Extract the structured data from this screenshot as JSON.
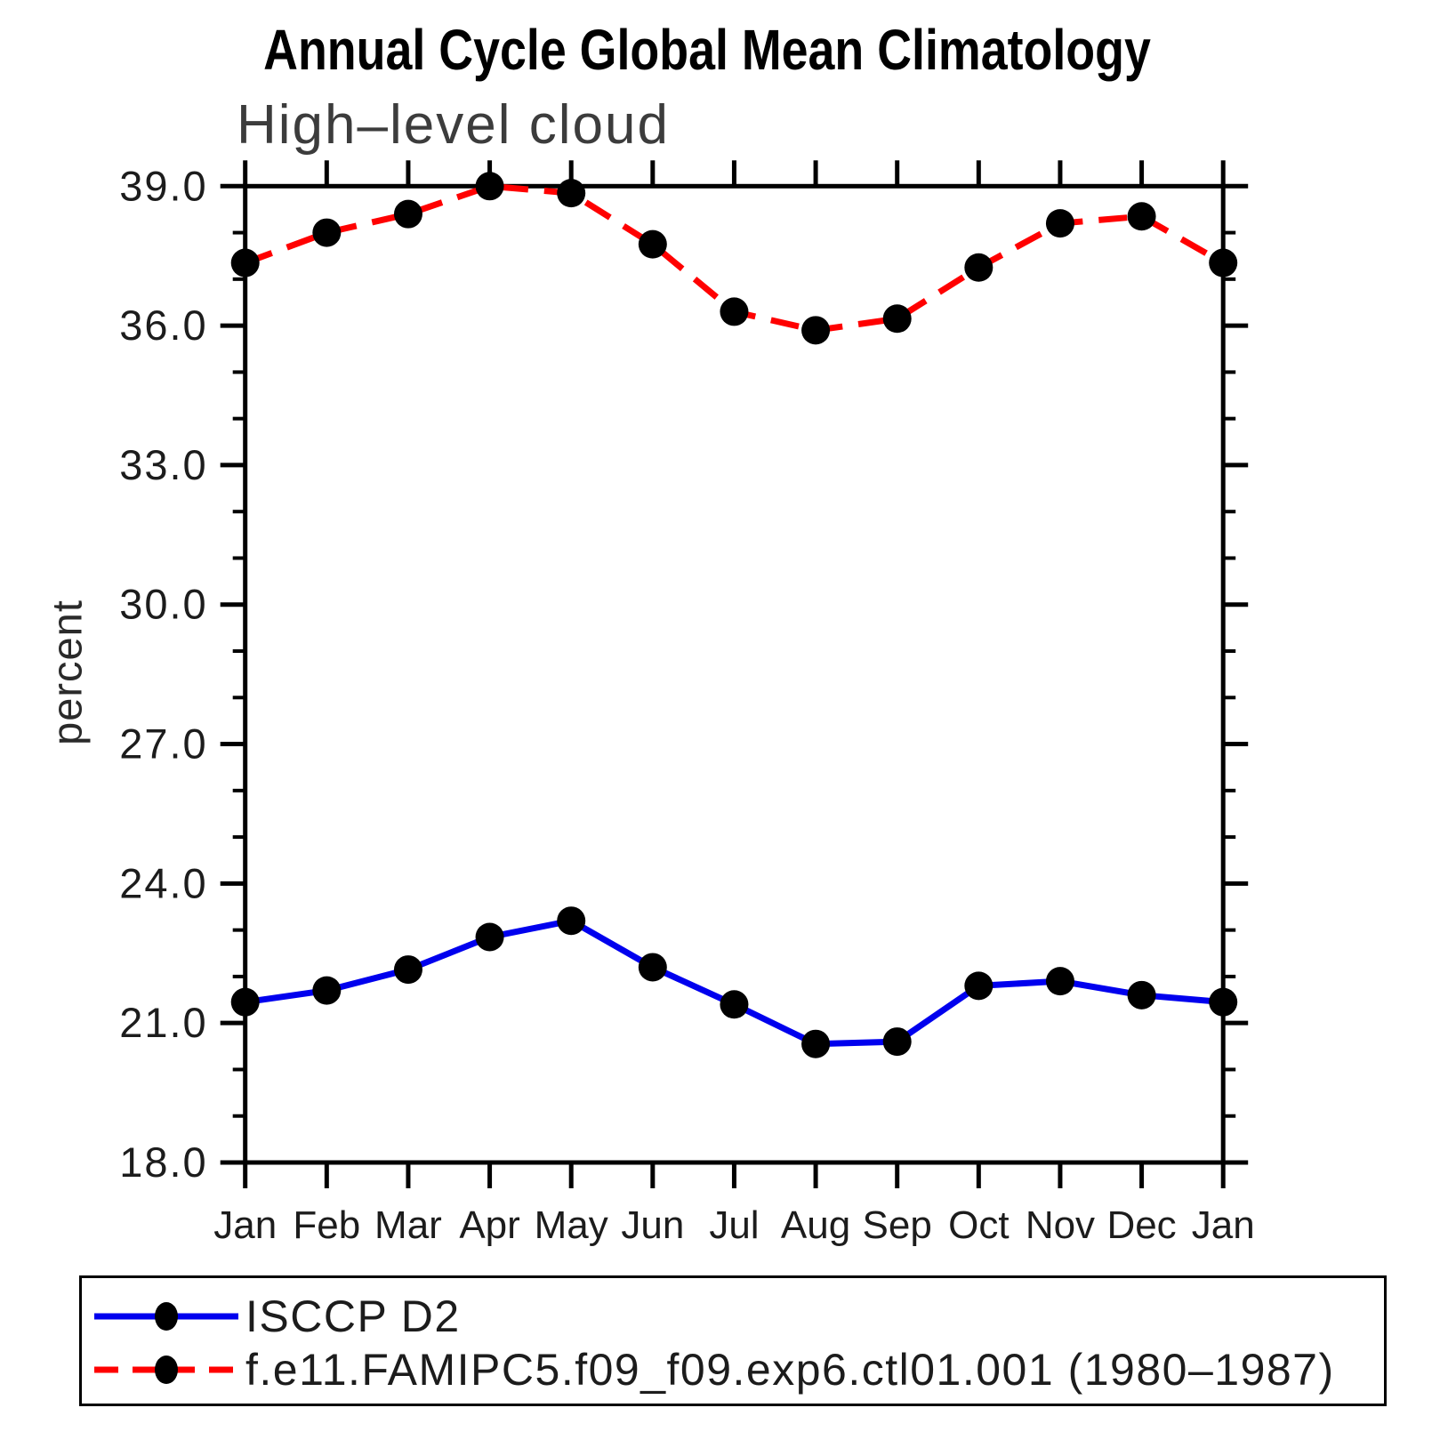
{
  "chart_data": {
    "type": "line",
    "title": "Annual Cycle Global Mean Climatology",
    "subtitle": "High–level cloud",
    "ylabel": "percent",
    "xlabel": "",
    "x_labels": [
      "Jan",
      "Feb",
      "Mar",
      "Apr",
      "May",
      "Jun",
      "Jul",
      "Aug",
      "Sep",
      "Oct",
      "Nov",
      "Dec",
      "Jan"
    ],
    "ylim": [
      18.0,
      39.0
    ],
    "y_major_ticks": [
      18,
      21,
      24,
      27,
      30,
      33,
      36,
      39
    ],
    "y_tick_labels": [
      "18.0",
      "21.0",
      "24.0",
      "27.0",
      "30.0",
      "33.0",
      "36.0",
      "39.0"
    ],
    "y_minor_step": 1,
    "grid": false,
    "legend_position": "bottom",
    "series": [
      {
        "name": "ISCCP D2",
        "color": "#0000ee",
        "style": "solid",
        "marker": "circle",
        "marker_color": "#000000",
        "values": [
          21.45,
          21.7,
          22.15,
          22.85,
          23.2,
          22.2,
          21.4,
          20.55,
          20.6,
          21.8,
          21.9,
          21.6,
          21.45
        ]
      },
      {
        "name": "f.e11.FAMIPC5.f09_f09.exp6.ctl01.001 (1980–1987)",
        "color": "#ff0000",
        "style": "dashed",
        "marker": "circle",
        "marker_color": "#000000",
        "values": [
          37.35,
          38.0,
          38.4,
          39.0,
          38.85,
          37.75,
          36.3,
          35.9,
          36.15,
          37.25,
          38.2,
          38.35,
          37.35
        ]
      }
    ]
  }
}
